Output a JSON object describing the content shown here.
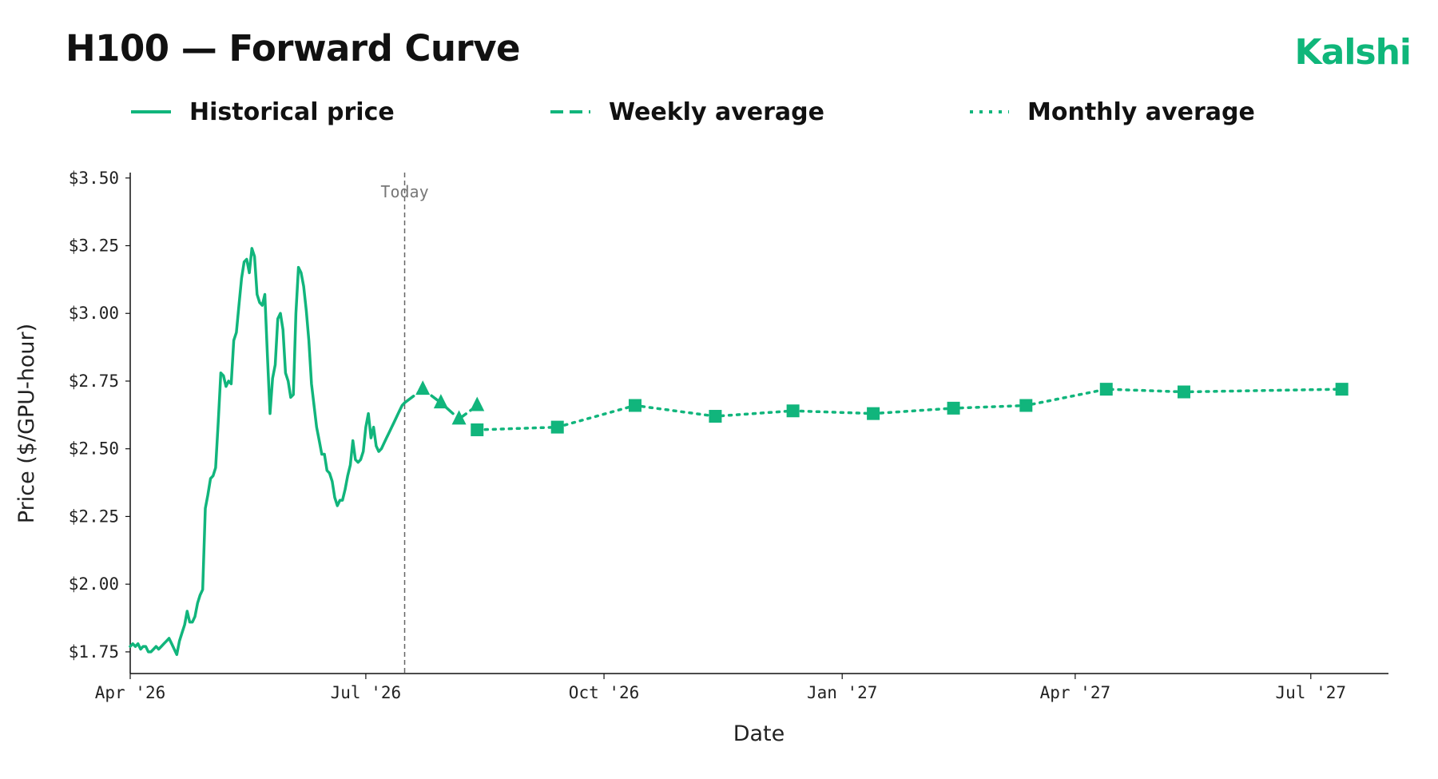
{
  "header": {
    "title": "H100 — Forward Curve",
    "brand": "Kalshi",
    "brand_color": "#0FB67A"
  },
  "legend": [
    {
      "label": "Historical price",
      "style": "solid"
    },
    {
      "label": "Weekly average",
      "style": "dashed"
    },
    {
      "label": "Monthly average",
      "style": "dotted"
    }
  ],
  "chart_data": {
    "type": "line",
    "title": "H100 — Forward Curve",
    "xlabel": "Date",
    "ylabel": "Price ($/GPU-hour)",
    "xlim": [
      "2026-04-01",
      "2027-07-31"
    ],
    "ylim": [
      1.67,
      3.52
    ],
    "grid": false,
    "legend_position": "top",
    "color": "#11B57C",
    "x_ticks": [
      {
        "date": "2026-04-01",
        "label": "Apr '26"
      },
      {
        "date": "2026-07-01",
        "label": "Jul '26"
      },
      {
        "date": "2026-10-01",
        "label": "Oct '26"
      },
      {
        "date": "2027-01-01",
        "label": "Jan '27"
      },
      {
        "date": "2027-04-01",
        "label": "Apr '27"
      },
      {
        "date": "2027-07-01",
        "label": "Jul '27"
      }
    ],
    "y_ticks": [
      {
        "value": 1.75,
        "label": "$1.75"
      },
      {
        "value": 2.0,
        "label": "$2.00"
      },
      {
        "value": 2.25,
        "label": "$2.25"
      },
      {
        "value": 2.5,
        "label": "$2.50"
      },
      {
        "value": 2.75,
        "label": "$2.75"
      },
      {
        "value": 3.0,
        "label": "$3.00"
      },
      {
        "value": 3.25,
        "label": "$3.25"
      },
      {
        "value": 3.5,
        "label": "$3.50"
      }
    ],
    "today": {
      "date": "2026-07-16",
      "label": "Today"
    },
    "series": [
      {
        "name": "Historical price",
        "style": "solid",
        "points": [
          [
            "2026-04-01",
            1.77
          ],
          [
            "2026-04-02",
            1.78
          ],
          [
            "2026-04-03",
            1.77
          ],
          [
            "2026-04-04",
            1.78
          ],
          [
            "2026-04-05",
            1.76
          ],
          [
            "2026-04-06",
            1.77
          ],
          [
            "2026-04-07",
            1.77
          ],
          [
            "2026-04-08",
            1.75
          ],
          [
            "2026-04-09",
            1.75
          ],
          [
            "2026-04-10",
            1.76
          ],
          [
            "2026-04-11",
            1.77
          ],
          [
            "2026-04-12",
            1.76
          ],
          [
            "2026-04-13",
            1.77
          ],
          [
            "2026-04-14",
            1.78
          ],
          [
            "2026-04-15",
            1.79
          ],
          [
            "2026-04-16",
            1.8
          ],
          [
            "2026-04-17",
            1.78
          ],
          [
            "2026-04-18",
            1.76
          ],
          [
            "2026-04-19",
            1.74
          ],
          [
            "2026-04-20",
            1.79
          ],
          [
            "2026-04-21",
            1.82
          ],
          [
            "2026-04-22",
            1.85
          ],
          [
            "2026-04-23",
            1.9
          ],
          [
            "2026-04-24",
            1.86
          ],
          [
            "2026-04-25",
            1.86
          ],
          [
            "2026-04-26",
            1.88
          ],
          [
            "2026-04-27",
            1.93
          ],
          [
            "2026-04-28",
            1.96
          ],
          [
            "2026-04-29",
            1.98
          ],
          [
            "2026-04-30",
            2.28
          ],
          [
            "2026-05-01",
            2.33
          ],
          [
            "2026-05-02",
            2.39
          ],
          [
            "2026-05-03",
            2.4
          ],
          [
            "2026-05-04",
            2.43
          ],
          [
            "2026-05-05",
            2.6
          ],
          [
            "2026-05-06",
            2.78
          ],
          [
            "2026-05-07",
            2.77
          ],
          [
            "2026-05-08",
            2.73
          ],
          [
            "2026-05-09",
            2.75
          ],
          [
            "2026-05-10",
            2.74
          ],
          [
            "2026-05-11",
            2.9
          ],
          [
            "2026-05-12",
            2.93
          ],
          [
            "2026-05-13",
            3.03
          ],
          [
            "2026-05-14",
            3.13
          ],
          [
            "2026-05-15",
            3.19
          ],
          [
            "2026-05-16",
            3.2
          ],
          [
            "2026-05-17",
            3.15
          ],
          [
            "2026-05-18",
            3.24
          ],
          [
            "2026-05-19",
            3.21
          ],
          [
            "2026-05-20",
            3.07
          ],
          [
            "2026-05-21",
            3.04
          ],
          [
            "2026-05-22",
            3.03
          ],
          [
            "2026-05-23",
            3.07
          ],
          [
            "2026-05-24",
            2.84
          ],
          [
            "2026-05-25",
            2.63
          ],
          [
            "2026-05-26",
            2.76
          ],
          [
            "2026-05-27",
            2.81
          ],
          [
            "2026-05-28",
            2.98
          ],
          [
            "2026-05-29",
            3.0
          ],
          [
            "2026-05-30",
            2.94
          ],
          [
            "2026-05-31",
            2.78
          ],
          [
            "2026-06-01",
            2.75
          ],
          [
            "2026-06-02",
            2.69
          ],
          [
            "2026-06-03",
            2.7
          ],
          [
            "2026-06-04",
            3.0
          ],
          [
            "2026-06-05",
            3.17
          ],
          [
            "2026-06-06",
            3.15
          ],
          [
            "2026-06-07",
            3.1
          ],
          [
            "2026-06-08",
            3.01
          ],
          [
            "2026-06-09",
            2.9
          ],
          [
            "2026-06-10",
            2.74
          ],
          [
            "2026-06-11",
            2.66
          ],
          [
            "2026-06-12",
            2.58
          ],
          [
            "2026-06-13",
            2.53
          ],
          [
            "2026-06-14",
            2.48
          ],
          [
            "2026-06-15",
            2.48
          ],
          [
            "2026-06-16",
            2.42
          ],
          [
            "2026-06-17",
            2.41
          ],
          [
            "2026-06-18",
            2.38
          ],
          [
            "2026-06-19",
            2.32
          ],
          [
            "2026-06-20",
            2.29
          ],
          [
            "2026-06-21",
            2.31
          ],
          [
            "2026-06-22",
            2.31
          ],
          [
            "2026-06-23",
            2.35
          ],
          [
            "2026-06-24",
            2.4
          ],
          [
            "2026-06-25",
            2.44
          ],
          [
            "2026-06-26",
            2.53
          ],
          [
            "2026-06-27",
            2.46
          ],
          [
            "2026-06-28",
            2.45
          ],
          [
            "2026-06-29",
            2.46
          ],
          [
            "2026-06-30",
            2.49
          ],
          [
            "2026-07-01",
            2.58
          ],
          [
            "2026-07-02",
            2.63
          ],
          [
            "2026-07-03",
            2.54
          ],
          [
            "2026-07-04",
            2.58
          ],
          [
            "2026-07-05",
            2.51
          ],
          [
            "2026-07-06",
            2.49
          ],
          [
            "2026-07-07",
            2.5
          ],
          [
            "2026-07-08",
            2.52
          ],
          [
            "2026-07-09",
            2.54
          ],
          [
            "2026-07-10",
            2.56
          ],
          [
            "2026-07-11",
            2.58
          ],
          [
            "2026-07-12",
            2.6
          ],
          [
            "2026-07-13",
            2.62
          ],
          [
            "2026-07-14",
            2.64
          ],
          [
            "2026-07-15",
            2.66
          ],
          [
            "2026-07-16",
            2.67
          ]
        ]
      },
      {
        "name": "Weekly average",
        "style": "dashed",
        "marker": "triangle",
        "points": [
          [
            "2026-07-16",
            2.67
          ],
          [
            "2026-07-23",
            2.72
          ],
          [
            "2026-07-30",
            2.67
          ],
          [
            "2026-08-06",
            2.61
          ],
          [
            "2026-08-13",
            2.66
          ]
        ]
      },
      {
        "name": "Monthly average",
        "style": "dotted",
        "marker": "square",
        "points": [
          [
            "2026-08-13",
            2.57
          ],
          [
            "2026-09-13",
            2.58
          ],
          [
            "2026-10-13",
            2.66
          ],
          [
            "2026-11-13",
            2.62
          ],
          [
            "2026-12-13",
            2.64
          ],
          [
            "2027-01-13",
            2.63
          ],
          [
            "2027-02-13",
            2.65
          ],
          [
            "2027-03-13",
            2.66
          ],
          [
            "2027-04-13",
            2.72
          ],
          [
            "2027-05-13",
            2.71
          ],
          [
            "2027-07-13",
            2.72
          ]
        ]
      }
    ]
  }
}
